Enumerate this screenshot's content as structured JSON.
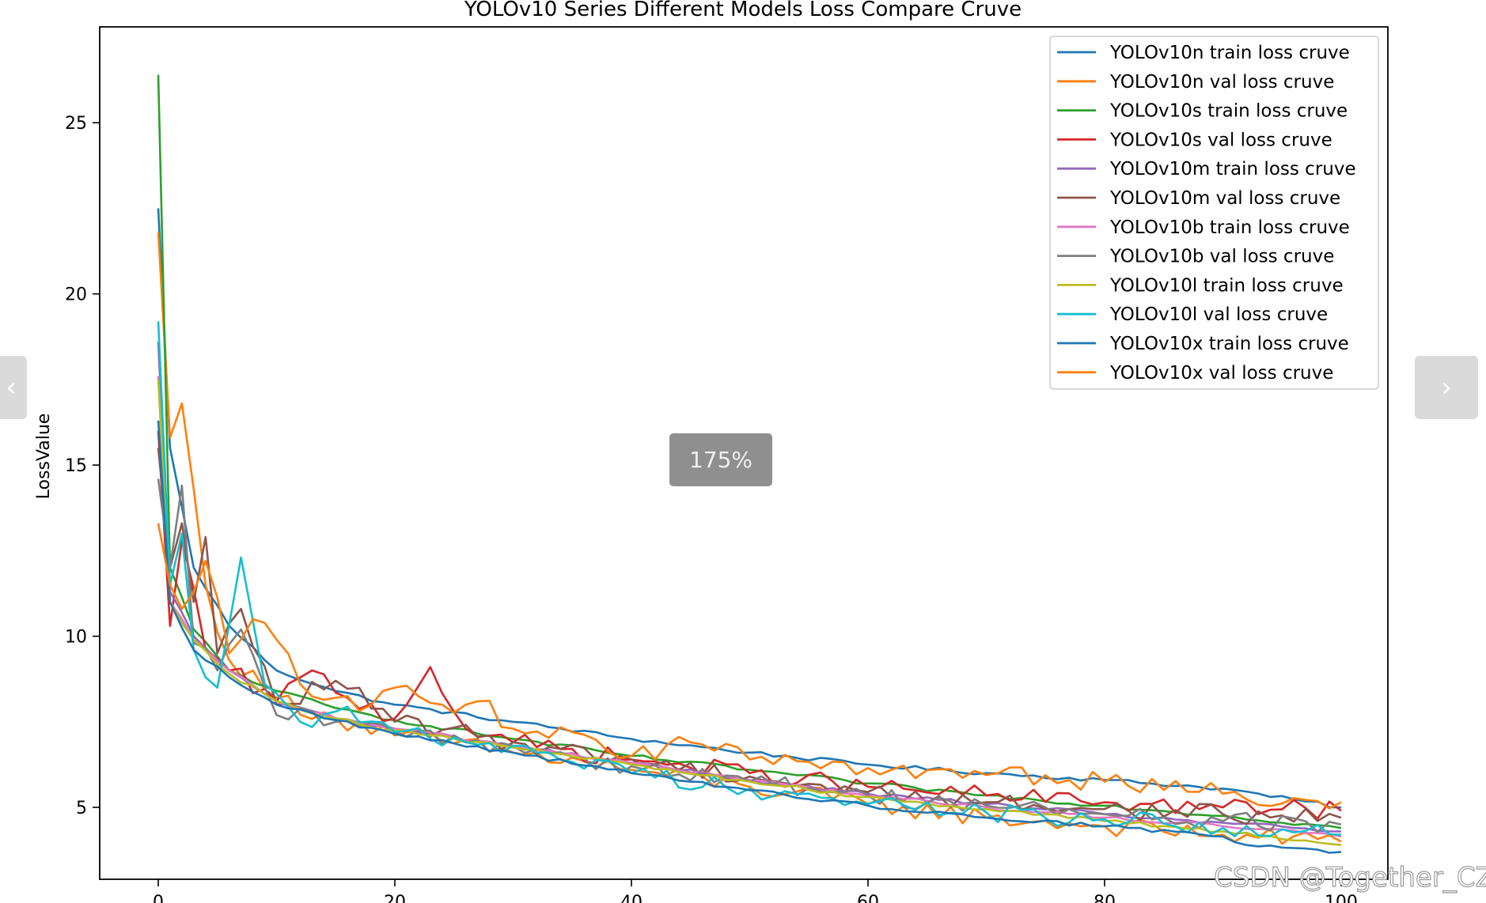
{
  "chart_data": {
    "type": "line",
    "title": "YOLOv10 Series Different Models Loss Compare Cruve",
    "xlabel": "",
    "ylabel": "LossValue",
    "xlim": [
      -4.95,
      103.95
    ],
    "ylim": [
      2.9,
      27.8
    ],
    "xticks": [
      0,
      20,
      40,
      60,
      80,
      100
    ],
    "yticks": [
      5,
      10,
      15,
      20,
      25
    ],
    "legend_position": "upper right",
    "grid": false,
    "series": [
      {
        "name": "YOLOv10n train loss cruve",
        "color": "#1f77b4",
        "checkpoints": [
          [
            0,
            22.5
          ],
          [
            1,
            15.5
          ],
          [
            3,
            12.0
          ],
          [
            6,
            10.3
          ],
          [
            10,
            9.0
          ],
          [
            15,
            8.4
          ],
          [
            20,
            8.0
          ],
          [
            30,
            7.5
          ],
          [
            40,
            7.0
          ],
          [
            50,
            6.6
          ],
          [
            60,
            6.25
          ],
          [
            70,
            6.0
          ],
          [
            80,
            5.8
          ],
          [
            90,
            5.55
          ],
          [
            100,
            5.0
          ]
        ]
      },
      {
        "name": "YOLOv10n val loss cruve",
        "color": "#ff7f0e",
        "checkpoints": [
          [
            0,
            21.8
          ],
          [
            1,
            15.8
          ],
          [
            2,
            16.8
          ],
          [
            4,
            11.5
          ],
          [
            6,
            9.3
          ],
          [
            10,
            8.2
          ],
          [
            15,
            7.6
          ],
          [
            20,
            7.1
          ],
          [
            30,
            6.6
          ],
          [
            40,
            6.1
          ],
          [
            50,
            5.6
          ],
          [
            60,
            5.1
          ],
          [
            70,
            4.7
          ],
          [
            80,
            4.45
          ],
          [
            90,
            4.2
          ],
          [
            100,
            4.0
          ]
        ]
      },
      {
        "name": "YOLOv10s train loss cruve",
        "color": "#2ca02c",
        "checkpoints": [
          [
            0,
            26.4
          ],
          [
            1,
            12.0
          ],
          [
            3,
            10.2
          ],
          [
            6,
            9.0
          ],
          [
            10,
            8.4
          ],
          [
            15,
            7.9
          ],
          [
            20,
            7.55
          ],
          [
            30,
            7.0
          ],
          [
            40,
            6.5
          ],
          [
            50,
            6.1
          ],
          [
            60,
            5.7
          ],
          [
            70,
            5.35
          ],
          [
            80,
            5.05
          ],
          [
            90,
            4.75
          ],
          [
            100,
            4.4
          ]
        ]
      },
      {
        "name": "YOLOv10s val loss cruve",
        "color": "#d62728",
        "checkpoints": [
          [
            0,
            16.0
          ],
          [
            1,
            10.3
          ],
          [
            2,
            12.8
          ],
          [
            4,
            9.6
          ],
          [
            6,
            9.0
          ],
          [
            10,
            8.1
          ],
          [
            13,
            9.0
          ],
          [
            16,
            8.2
          ],
          [
            20,
            7.6
          ],
          [
            23,
            9.1
          ],
          [
            26,
            7.3
          ],
          [
            30,
            6.9
          ],
          [
            40,
            6.4
          ],
          [
            50,
            6.0
          ],
          [
            60,
            5.6
          ],
          [
            70,
            5.35
          ],
          [
            80,
            5.15
          ],
          [
            90,
            5.0
          ],
          [
            100,
            4.9
          ]
        ]
      },
      {
        "name": "YOLOv10m train loss cruve",
        "color": "#9467bd",
        "checkpoints": [
          [
            0,
            18.6
          ],
          [
            1,
            11.3
          ],
          [
            3,
            10.0
          ],
          [
            6,
            9.0
          ],
          [
            10,
            8.1
          ],
          [
            15,
            7.6
          ],
          [
            20,
            7.3
          ],
          [
            30,
            6.8
          ],
          [
            40,
            6.3
          ],
          [
            50,
            5.8
          ],
          [
            60,
            5.4
          ],
          [
            70,
            5.1
          ],
          [
            80,
            4.8
          ],
          [
            90,
            4.55
          ],
          [
            100,
            4.3
          ]
        ]
      },
      {
        "name": "YOLOv10m val loss cruve",
        "color": "#8c564b",
        "checkpoints": [
          [
            0,
            15.5
          ],
          [
            1,
            12.0
          ],
          [
            2,
            13.3
          ],
          [
            3,
            11.0
          ],
          [
            4,
            12.9
          ],
          [
            5,
            9.5
          ],
          [
            7,
            10.8
          ],
          [
            10,
            8.0
          ],
          [
            15,
            8.7
          ],
          [
            20,
            7.5
          ],
          [
            30,
            6.9
          ],
          [
            40,
            6.4
          ],
          [
            50,
            5.9
          ],
          [
            60,
            5.45
          ],
          [
            70,
            5.15
          ],
          [
            80,
            4.95
          ],
          [
            90,
            4.8
          ],
          [
            100,
            4.7
          ]
        ]
      },
      {
        "name": "YOLOv10b train loss cruve",
        "color": "#e377c2",
        "checkpoints": [
          [
            0,
            17.6
          ],
          [
            1,
            11.0
          ],
          [
            3,
            9.9
          ],
          [
            6,
            9.0
          ],
          [
            10,
            8.1
          ],
          [
            15,
            7.6
          ],
          [
            20,
            7.3
          ],
          [
            30,
            6.8
          ],
          [
            40,
            6.3
          ],
          [
            50,
            5.8
          ],
          [
            60,
            5.35
          ],
          [
            70,
            5.0
          ],
          [
            80,
            4.7
          ],
          [
            90,
            4.45
          ],
          [
            100,
            4.15
          ]
        ]
      },
      {
        "name": "YOLOv10b val loss cruve",
        "color": "#7f7f7f",
        "checkpoints": [
          [
            0,
            14.6
          ],
          [
            1,
            12.0
          ],
          [
            2,
            14.4
          ],
          [
            3,
            9.8
          ],
          [
            5,
            9.0
          ],
          [
            7,
            10.2
          ],
          [
            10,
            7.7
          ],
          [
            15,
            7.5
          ],
          [
            20,
            7.2
          ],
          [
            30,
            6.8
          ],
          [
            40,
            6.2
          ],
          [
            50,
            5.75
          ],
          [
            60,
            5.35
          ],
          [
            70,
            5.05
          ],
          [
            80,
            4.8
          ],
          [
            90,
            4.6
          ],
          [
            100,
            4.5
          ]
        ]
      },
      {
        "name": "YOLOv10l train loss cruve",
        "color": "#bcbd22",
        "checkpoints": [
          [
            0,
            17.5
          ],
          [
            1,
            11.0
          ],
          [
            3,
            9.9
          ],
          [
            6,
            8.9
          ],
          [
            10,
            8.1
          ],
          [
            15,
            7.6
          ],
          [
            20,
            7.25
          ],
          [
            30,
            6.75
          ],
          [
            40,
            6.25
          ],
          [
            50,
            5.75
          ],
          [
            60,
            5.3
          ],
          [
            70,
            4.95
          ],
          [
            80,
            4.6
          ],
          [
            90,
            4.3
          ],
          [
            100,
            3.9
          ]
        ]
      },
      {
        "name": "YOLOv10l val loss cruve",
        "color": "#17becf",
        "checkpoints": [
          [
            0,
            19.2
          ],
          [
            1,
            11.5
          ],
          [
            2,
            13.0
          ],
          [
            3,
            9.6
          ],
          [
            5,
            8.5
          ],
          [
            7,
            12.3
          ],
          [
            9,
            8.6
          ],
          [
            12,
            7.5
          ],
          [
            15,
            7.8
          ],
          [
            20,
            7.2
          ],
          [
            30,
            6.8
          ],
          [
            40,
            6.0
          ],
          [
            50,
            5.55
          ],
          [
            60,
            5.1
          ],
          [
            70,
            4.85
          ],
          [
            80,
            4.65
          ],
          [
            90,
            4.4
          ],
          [
            100,
            4.2
          ]
        ]
      },
      {
        "name": "YOLOv10x train loss cruve",
        "color": "#1f77b4",
        "checkpoints": [
          [
            0,
            16.3
          ],
          [
            1,
            11.0
          ],
          [
            3,
            9.6
          ],
          [
            6,
            8.8
          ],
          [
            10,
            8.0
          ],
          [
            15,
            7.55
          ],
          [
            20,
            7.15
          ],
          [
            30,
            6.6
          ],
          [
            40,
            6.0
          ],
          [
            50,
            5.5
          ],
          [
            60,
            5.05
          ],
          [
            70,
            4.7
          ],
          [
            80,
            4.45
          ],
          [
            90,
            4.15
          ],
          [
            92,
            3.9
          ],
          [
            100,
            3.7
          ]
        ]
      },
      {
        "name": "YOLOv10x val loss cruve",
        "color": "#ff7f0e",
        "checkpoints": [
          [
            0,
            13.3
          ],
          [
            1,
            11.5
          ],
          [
            2,
            10.8
          ],
          [
            4,
            12.2
          ],
          [
            6,
            9.5
          ],
          [
            8,
            10.5
          ],
          [
            10,
            9.9
          ],
          [
            12,
            8.6
          ],
          [
            15,
            8.2
          ],
          [
            18,
            8.0
          ],
          [
            20,
            8.5
          ],
          [
            24,
            8.0
          ],
          [
            27,
            8.1
          ],
          [
            30,
            7.3
          ],
          [
            35,
            7.2
          ],
          [
            40,
            6.5
          ],
          [
            45,
            6.9
          ],
          [
            50,
            6.4
          ],
          [
            60,
            6.15
          ],
          [
            70,
            5.95
          ],
          [
            80,
            5.75
          ],
          [
            90,
            5.4
          ],
          [
            100,
            5.15
          ]
        ]
      }
    ]
  },
  "viewer": {
    "zoom_label": "175%",
    "prev_icon": "‹",
    "next_icon": "›"
  },
  "watermark": "CSDN @Together_CZ"
}
